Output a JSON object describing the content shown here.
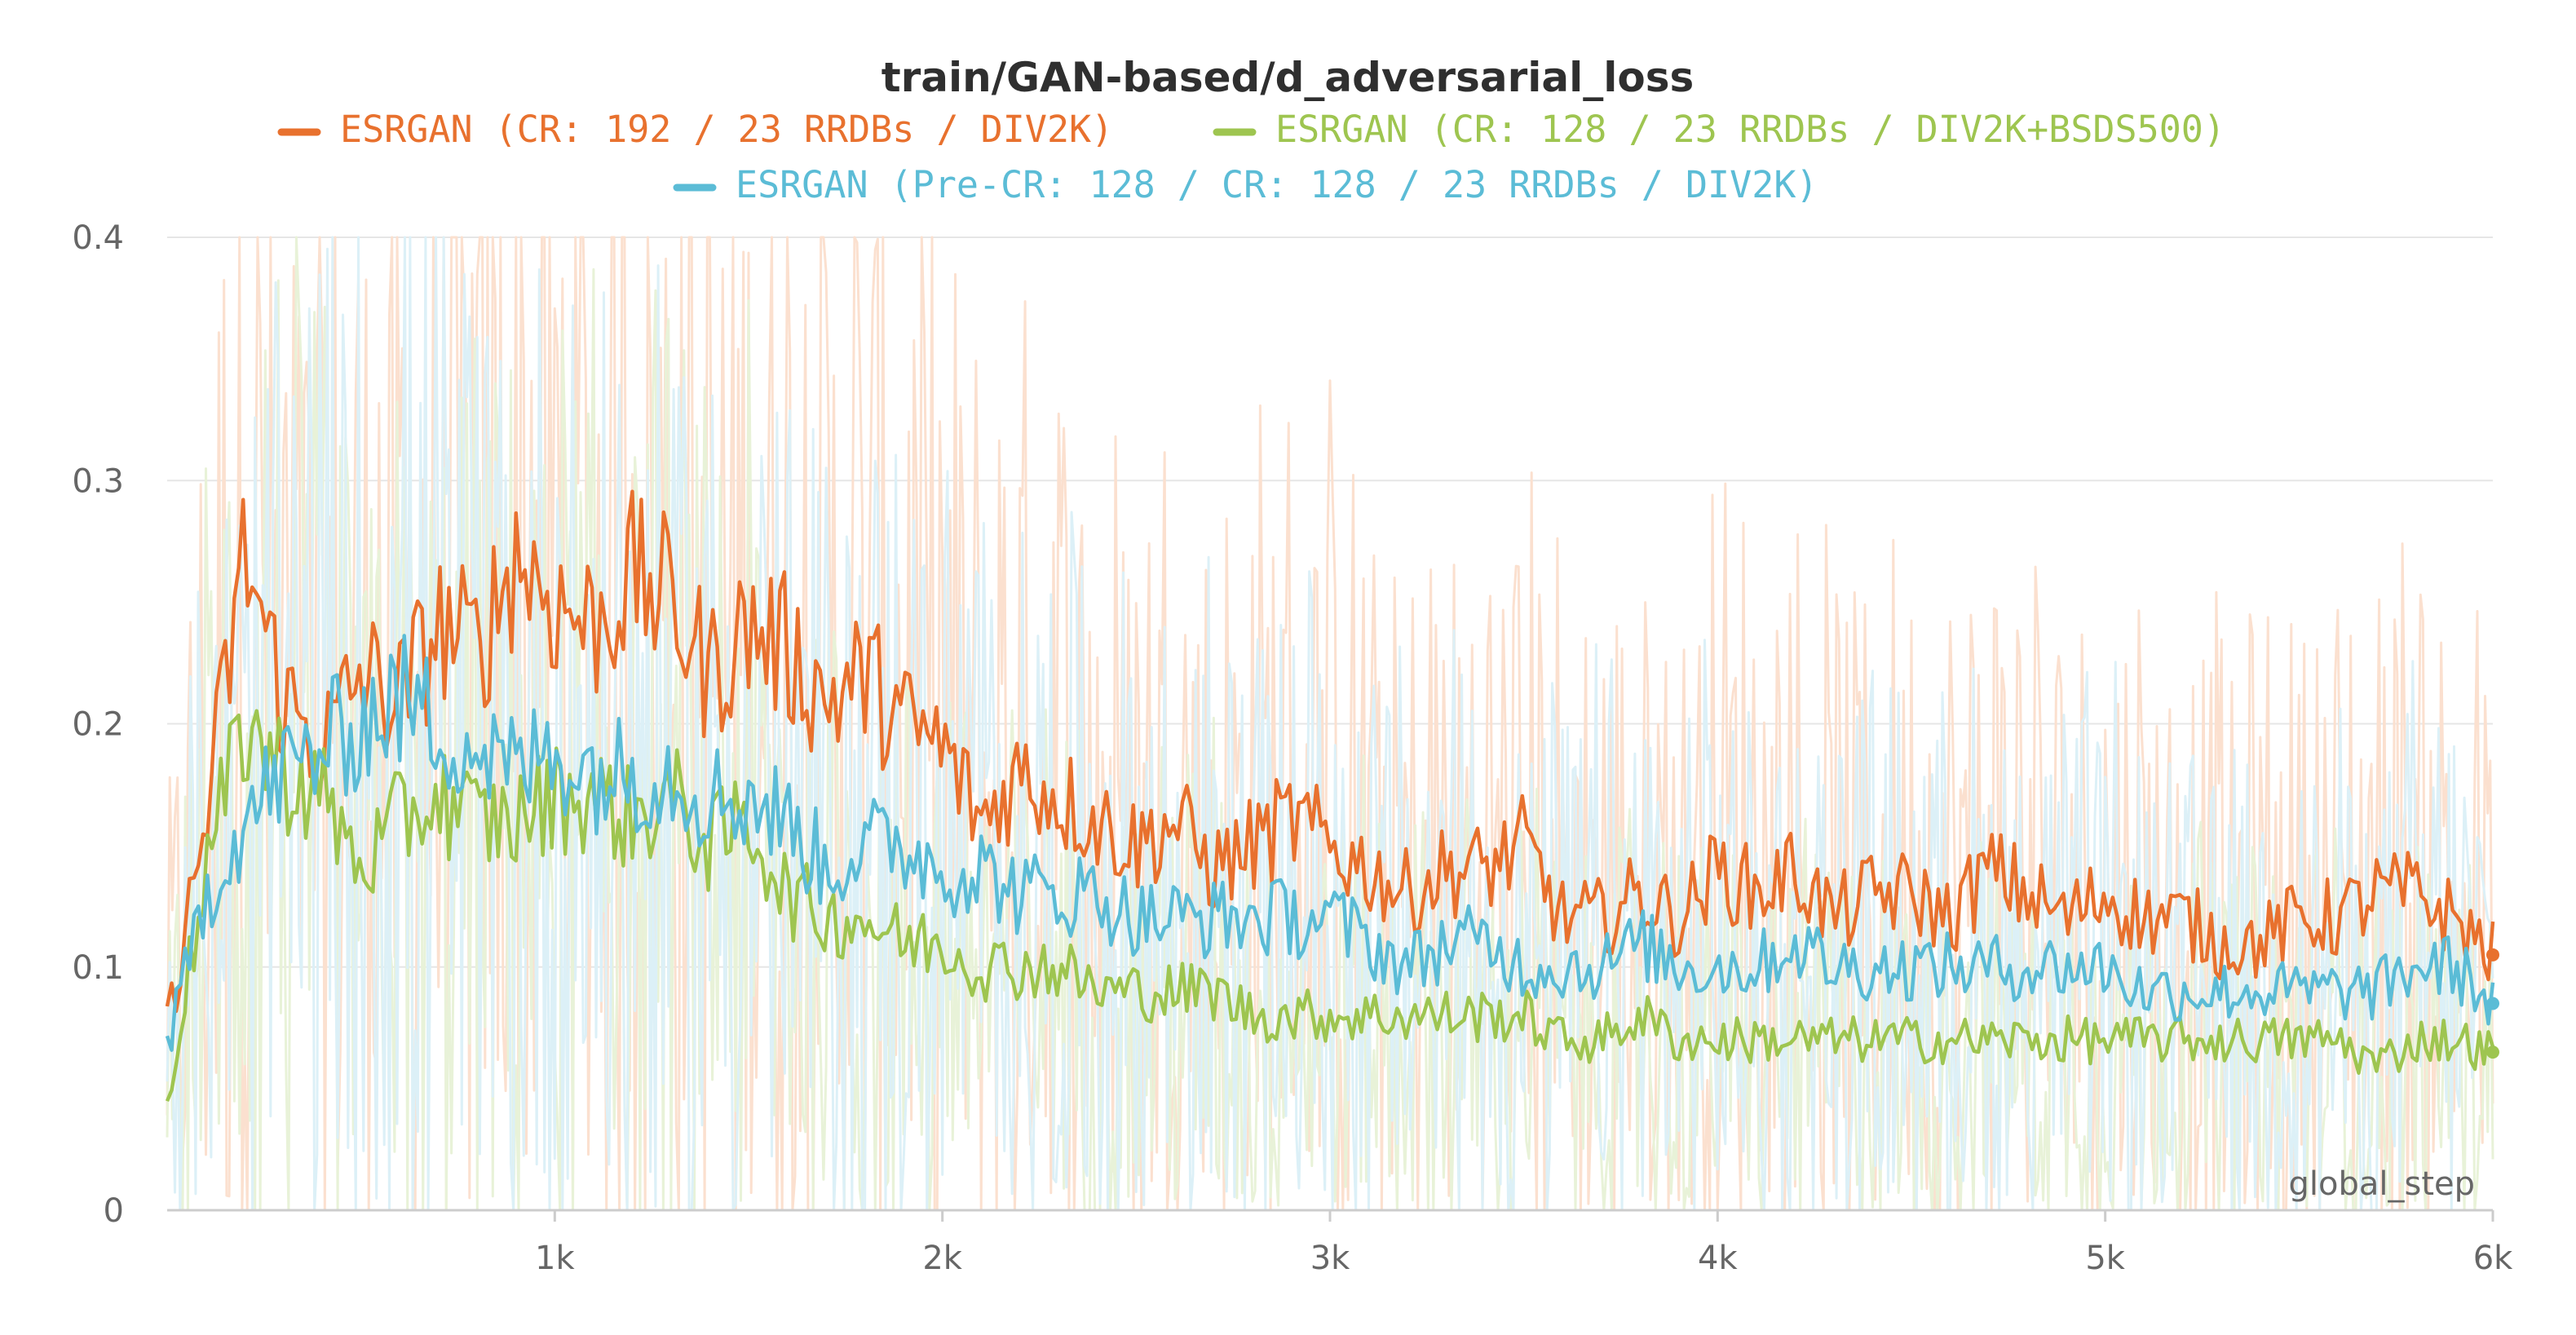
{
  "chart_data": {
    "type": "line",
    "title": "train/GAN-based/d_adversarial_loss",
    "xlabel": "global_step",
    "ylabel": "",
    "xlim": [
      0,
      6000
    ],
    "ylim": [
      0,
      0.4
    ],
    "x_ticks": [
      1000,
      2000,
      3000,
      4000,
      5000,
      6000
    ],
    "x_tick_labels": [
      "1k",
      "2k",
      "3k",
      "4k",
      "5k",
      "6k"
    ],
    "y_ticks": [
      0,
      0.1,
      0.2,
      0.3,
      0.4
    ],
    "y_tick_labels": [
      "0",
      "0.1",
      "0.2",
      "0.3",
      "0.4"
    ],
    "grid": true,
    "legend_position": "top",
    "x": [
      0,
      100,
      200,
      300,
      400,
      500,
      600,
      700,
      800,
      900,
      1000,
      1100,
      1200,
      1300,
      1400,
      1500,
      1600,
      1700,
      1800,
      1900,
      2000,
      2100,
      2200,
      2300,
      2400,
      2500,
      2600,
      2700,
      2800,
      2900,
      3000,
      3100,
      3200,
      3300,
      3400,
      3500,
      3600,
      3700,
      3800,
      3900,
      4000,
      4100,
      4200,
      4300,
      4400,
      4500,
      4600,
      4700,
      4800,
      4900,
      5000,
      5100,
      5200,
      5300,
      5400,
      5500,
      5600,
      5700,
      5800,
      5900,
      6000
    ],
    "series": [
      {
        "name": "ESRGAN (CR: 192 / 23 RRDBs / DIV2K)",
        "color": "#e8712e",
        "raw_color": "#fbe0cf",
        "values": [
          0.075,
          0.16,
          0.27,
          0.21,
          0.19,
          0.22,
          0.21,
          0.24,
          0.23,
          0.27,
          0.25,
          0.24,
          0.26,
          0.25,
          0.22,
          0.24,
          0.23,
          0.21,
          0.22,
          0.2,
          0.19,
          0.16,
          0.18,
          0.17,
          0.16,
          0.15,
          0.16,
          0.14,
          0.15,
          0.16,
          0.15,
          0.14,
          0.13,
          0.14,
          0.14,
          0.15,
          0.12,
          0.12,
          0.13,
          0.12,
          0.14,
          0.13,
          0.14,
          0.12,
          0.13,
          0.13,
          0.12,
          0.14,
          0.13,
          0.12,
          0.13,
          0.12,
          0.12,
          0.11,
          0.11,
          0.12,
          0.12,
          0.13,
          0.13,
          0.12,
          0.105
        ]
      },
      {
        "name": "ESRGAN (CR: 128 / 23 RRDBs / DIV2K+BSDS500)",
        "color": "#9ec550",
        "raw_color": "#e8f2d8",
        "values": [
          0.045,
          0.14,
          0.2,
          0.18,
          0.17,
          0.14,
          0.16,
          0.17,
          0.16,
          0.16,
          0.17,
          0.17,
          0.16,
          0.17,
          0.15,
          0.16,
          0.13,
          0.12,
          0.12,
          0.11,
          0.11,
          0.1,
          0.1,
          0.1,
          0.09,
          0.09,
          0.09,
          0.09,
          0.08,
          0.08,
          0.08,
          0.08,
          0.08,
          0.08,
          0.08,
          0.08,
          0.07,
          0.07,
          0.08,
          0.07,
          0.07,
          0.07,
          0.07,
          0.07,
          0.07,
          0.07,
          0.07,
          0.07,
          0.07,
          0.07,
          0.07,
          0.07,
          0.07,
          0.07,
          0.07,
          0.07,
          0.07,
          0.06,
          0.07,
          0.07,
          0.065
        ]
      },
      {
        "name": "ESRGAN (Pre-CR: 128 / CR: 128 / 23 RRDBs / DIV2K)",
        "color": "#5bbcd6",
        "raw_color": "#dcf0f7",
        "values": [
          0.065,
          0.13,
          0.16,
          0.18,
          0.19,
          0.2,
          0.21,
          0.2,
          0.19,
          0.18,
          0.19,
          0.18,
          0.18,
          0.18,
          0.17,
          0.17,
          0.16,
          0.14,
          0.15,
          0.15,
          0.14,
          0.14,
          0.13,
          0.13,
          0.13,
          0.12,
          0.12,
          0.12,
          0.12,
          0.12,
          0.12,
          0.11,
          0.1,
          0.11,
          0.11,
          0.1,
          0.1,
          0.1,
          0.11,
          0.1,
          0.1,
          0.1,
          0.11,
          0.1,
          0.1,
          0.1,
          0.1,
          0.1,
          0.1,
          0.1,
          0.1,
          0.09,
          0.09,
          0.09,
          0.09,
          0.09,
          0.09,
          0.09,
          0.1,
          0.1,
          0.085
        ]
      }
    ]
  }
}
